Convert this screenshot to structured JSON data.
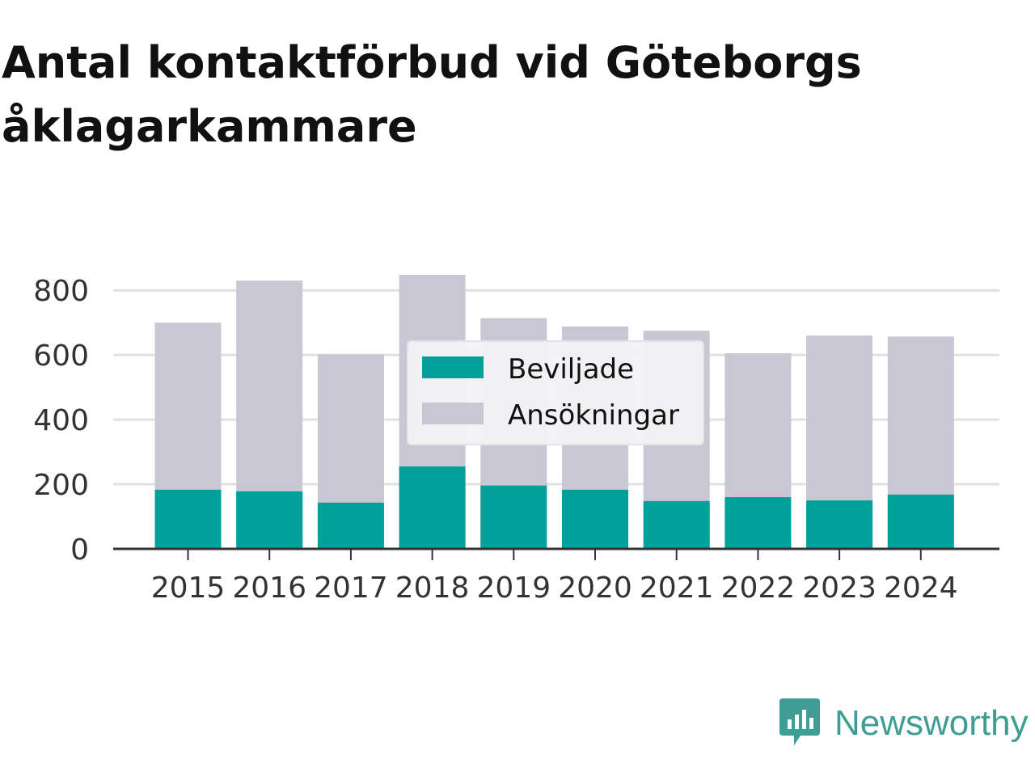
{
  "colors": {
    "granted": "#00a19a",
    "applications": "#c8c7d3",
    "grid": "#e0e0e0",
    "axis": "#333333",
    "brand": "#3e9e96"
  },
  "brand": {
    "name": "Newsworthy",
    "icon": "newsworthy-chart-bubble-icon"
  },
  "chart_data": {
    "type": "bar",
    "title": "Antal kontaktförbud vid Göteborgs åklagarkammare",
    "xlabel": "",
    "ylabel": "",
    "categories": [
      "2015",
      "2016",
      "2017",
      "2018",
      "2019",
      "2020",
      "2021",
      "2022",
      "2023",
      "2024"
    ],
    "series": [
      {
        "name": "Ansökningar",
        "values": [
          700,
          830,
          602,
          848,
          714,
          688,
          675,
          605,
          660,
          657
        ]
      },
      {
        "name": "Beviljade",
        "values": [
          183,
          178,
          143,
          255,
          196,
          183,
          148,
          160,
          150,
          168
        ]
      }
    ],
    "ylim": [
      0,
      848
    ],
    "yticks": [
      0,
      200,
      400,
      600,
      800
    ],
    "grid": true,
    "legend": {
      "placement": "center",
      "entries": [
        "Beviljade",
        "Ansökningar"
      ]
    }
  }
}
